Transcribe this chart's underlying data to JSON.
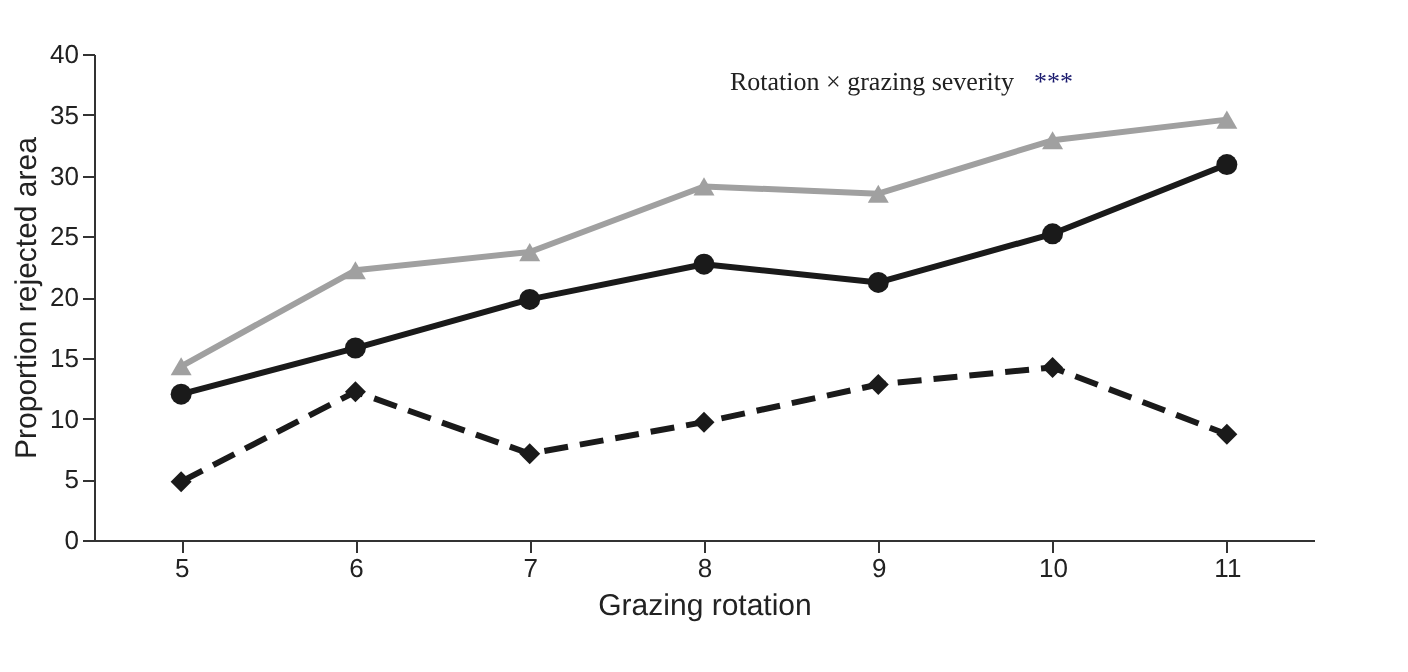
{
  "chart_data": {
    "type": "line",
    "xlabel": "Grazing rotation",
    "ylabel": "Proportion rejected area",
    "x": [
      5,
      6,
      7,
      8,
      9,
      10,
      11
    ],
    "series": [
      {
        "color": "#a0a0a0",
        "marker": "triangle",
        "line_style": "solid",
        "values": [
          14.3,
          22.2,
          23.7,
          29.1,
          28.5,
          32.9,
          34.6
        ]
      },
      {
        "color": "#1a1a1a",
        "marker": "circle",
        "line_style": "solid",
        "values": [
          12.0,
          15.8,
          19.8,
          22.7,
          21.2,
          25.2,
          30.9
        ]
      },
      {
        "color": "#1a1a1a",
        "marker": "diamond",
        "line_style": "dashed",
        "values": [
          4.8,
          12.2,
          7.1,
          9.7,
          12.8,
          14.2,
          8.7
        ]
      }
    ],
    "xlim": [
      4.5,
      11.5
    ],
    "xticks": [
      5,
      6,
      7,
      8,
      9,
      10,
      11
    ],
    "ylim": [
      0,
      40
    ],
    "yticks": [
      0,
      5,
      10,
      15,
      20,
      25,
      30,
      35,
      40
    ],
    "grid": false,
    "annotations": [
      "Rotation × grazing severity",
      "***"
    ]
  }
}
